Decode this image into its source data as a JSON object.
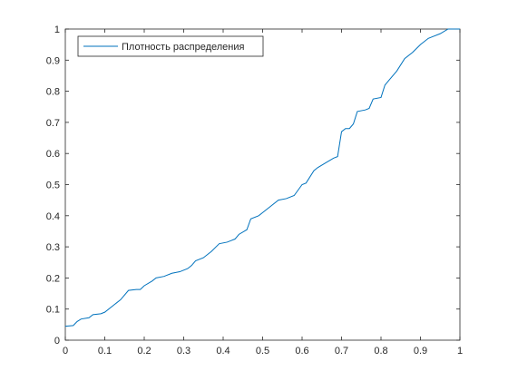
{
  "chart_data": {
    "type": "line",
    "x": [
      0,
      0.02,
      0.03,
      0.04,
      0.06,
      0.07,
      0.09,
      0.1,
      0.12,
      0.14,
      0.16,
      0.18,
      0.19,
      0.2,
      0.22,
      0.23,
      0.25,
      0.27,
      0.29,
      0.3,
      0.31,
      0.32,
      0.33,
      0.35,
      0.37,
      0.39,
      0.41,
      0.43,
      0.44,
      0.46,
      0.47,
      0.49,
      0.5,
      0.52,
      0.54,
      0.56,
      0.58,
      0.6,
      0.61,
      0.63,
      0.64,
      0.66,
      0.68,
      0.69,
      0.7,
      0.71,
      0.72,
      0.73,
      0.74,
      0.76,
      0.77,
      0.78,
      0.8,
      0.81,
      0.82,
      0.84,
      0.86,
      0.88,
      0.9,
      0.92,
      0.93,
      0.95,
      0.97,
      1
    ],
    "series": [
      {
        "name": "Плотность распределения",
        "color": "#0072bd",
        "values": [
          0.045,
          0.047,
          0.06,
          0.068,
          0.072,
          0.082,
          0.085,
          0.09,
          0.11,
          0.13,
          0.16,
          0.163,
          0.163,
          0.175,
          0.19,
          0.2,
          0.205,
          0.215,
          0.22,
          0.225,
          0.23,
          0.24,
          0.255,
          0.265,
          0.285,
          0.31,
          0.315,
          0.325,
          0.34,
          0.355,
          0.39,
          0.4,
          0.41,
          0.43,
          0.45,
          0.455,
          0.465,
          0.5,
          0.505,
          0.545,
          0.555,
          0.57,
          0.585,
          0.59,
          0.67,
          0.68,
          0.68,
          0.695,
          0.735,
          0.74,
          0.745,
          0.775,
          0.78,
          0.82,
          0.835,
          0.865,
          0.905,
          0.925,
          0.95,
          0.97,
          0.975,
          0.985,
          1,
          1
        ]
      }
    ],
    "xlim": [
      0,
      1
    ],
    "ylim": [
      0,
      1
    ],
    "xticks": [
      0,
      0.1,
      0.2,
      0.3,
      0.4,
      0.5,
      0.6,
      0.7,
      0.8,
      0.9,
      1
    ],
    "yticks": [
      0,
      0.1,
      0.2,
      0.3,
      0.4,
      0.5,
      0.6,
      0.7,
      0.8,
      0.9,
      1
    ],
    "legend": "upper left"
  }
}
